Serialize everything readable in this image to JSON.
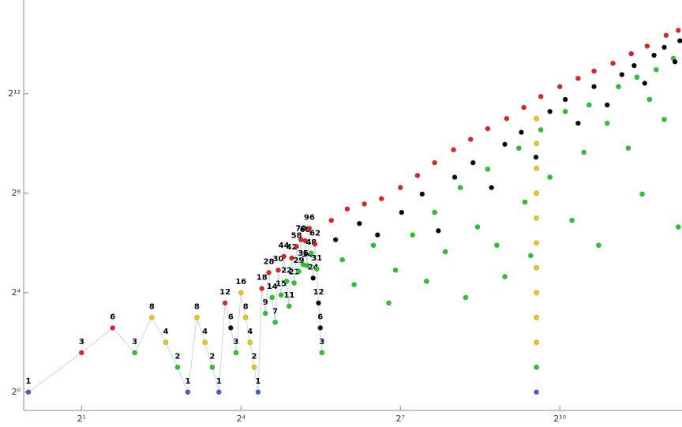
{
  "chart_data": {
    "type": "scatter",
    "log_x": 2,
    "log_y": 2,
    "xlim": [
      0.94,
      5040
    ],
    "ylim": [
      0.6,
      56000
    ],
    "xticks": [
      {
        "value": 2,
        "label": "2¹"
      },
      {
        "value": 16,
        "label": "2⁴"
      },
      {
        "value": 128,
        "label": "2⁷"
      },
      {
        "value": 1024,
        "label": "2¹⁰"
      }
    ],
    "yticks": [
      {
        "value": 1,
        "label": "2⁰"
      },
      {
        "value": 16,
        "label": "2⁴"
      },
      {
        "value": 256,
        "label": "2⁸"
      },
      {
        "value": 4096,
        "label": "2¹²"
      }
    ],
    "series": [
      {
        "line_color": "#c8d6e5",
        "labels": true,
        "x": [
          1,
          2,
          3,
          4,
          5,
          6,
          7,
          8,
          9,
          10,
          11,
          12,
          13,
          14,
          15,
          16,
          17,
          18,
          19,
          20,
          21,
          22,
          23,
          24,
          25,
          26,
          27,
          28,
          29,
          30,
          31,
          32,
          33,
          34,
          35,
          36,
          37,
          38,
          39,
          40,
          41,
          42,
          43,
          44,
          45,
          46
        ],
        "values": [
          1,
          3,
          6,
          3,
          8,
          4,
          2,
          1,
          8,
          4,
          2,
          1,
          12,
          6,
          3,
          16,
          8,
          4,
          2,
          1,
          18,
          9,
          28,
          14,
          7,
          30,
          15,
          44,
          22,
          11,
          42,
          21,
          58,
          29,
          70,
          35,
          68,
          34,
          96,
          48,
          24,
          62,
          31,
          12,
          6,
          3
        ],
        "colors": [
          "#4a5ae0",
          "#e8201e",
          "#e8201e",
          "#22cc22",
          "#f5c800",
          "#f5c800",
          "#22cc22",
          "#4a5ae0",
          "#f5c800",
          "#f5c800",
          "#22cc22",
          "#4a5ae0",
          "#e8201e",
          "#000000",
          "#22cc22",
          "#f5c800",
          "#f5c800",
          "#f5c800",
          "#f5c800",
          "#4a5ae0",
          "#e8201e",
          "#22cc22",
          "#e8201e",
          "#22cc22",
          "#22cc22",
          "#e8201e",
          "#22cc22",
          "#e8201e",
          "#22cc22",
          "#22cc22",
          "#e8201e",
          "#22cc22",
          "#e8201e",
          "#22cc22",
          "#e8201e",
          "#22cc22",
          "#e8201e",
          "#22cc22",
          "#e8201e",
          "#22cc22",
          "#000000",
          "#e8201e",
          "#22cc22",
          "#000000",
          "#000000",
          "#22cc22"
        ]
      },
      {
        "color": "#e8201e",
        "x": [
          52,
          64,
          80,
          100,
          128,
          160,
          200,
          256,
          320,
          400,
          512,
          640,
          800,
          1024,
          1300,
          1600,
          2048,
          2600,
          3200,
          4096,
          4800
        ],
        "values": [
          120,
          165,
          190,
          220,
          300,
          420,
          600,
          860,
          1150,
          1550,
          2050,
          2800,
          3800,
          5000,
          6300,
          7700,
          9600,
          12500,
          15500,
          20900,
          24000
        ]
      },
      {
        "color": "#22cc22",
        "x": [
          60,
          70,
          90,
          110,
          120,
          150,
          180,
          200,
          230,
          280,
          300,
          350,
          400,
          450,
          500,
          600,
          650,
          700,
          800,
          900,
          1100,
          1200,
          1400,
          1500,
          1700,
          1900,
          2200,
          2500,
          2800,
          3000,
          3300,
          3600,
          4000,
          4500,
          4800
        ],
        "values": [
          40,
          20,
          60,
          12,
          30,
          80,
          22,
          150,
          50,
          300,
          14,
          100,
          500,
          60,
          25,
          900,
          200,
          45,
          1500,
          400,
          2500,
          120,
          800,
          3000,
          60,
          1800,
          5000,
          900,
          6500,
          250,
          3500,
          8000,
          2000,
          11000,
          100
        ]
      },
      {
        "color": "#000000",
        "x": [
          55,
          75,
          95,
          130,
          170,
          210,
          260,
          330,
          420,
          500,
          620,
          750,
          900,
          1100,
          1300,
          1600,
          1900,
          2300,
          2700,
          3100,
          3500,
          4000,
          4600,
          4900
        ],
        "values": [
          70,
          110,
          80,
          150,
          250,
          90,
          400,
          600,
          300,
          1000,
          1400,
          700,
          2500,
          3500,
          1800,
          5000,
          3000,
          7000,
          9000,
          5500,
          12000,
          15000,
          10000,
          18000
        ]
      },
      {
        "x": [
          755,
          755,
          755,
          755,
          755,
          755,
          755,
          755,
          755,
          755,
          755,
          755
        ],
        "values": [
          1,
          2,
          4,
          8,
          16,
          32,
          64,
          128,
          256,
          512,
          1024,
          2048
        ],
        "colors": [
          "#4a5ae0",
          "#22cc22",
          "#f5c800",
          "#f5c800",
          "#f5c800",
          "#f5c800",
          "#f5c800",
          "#f5c800",
          "#f5c800",
          "#f5c800",
          "#f5c800",
          "#f5c800"
        ]
      }
    ]
  }
}
